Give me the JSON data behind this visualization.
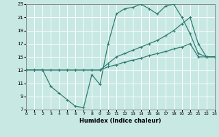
{
  "xlabel": "Humidex (Indice chaleur)",
  "xlim": [
    0,
    23
  ],
  "ylim": [
    7,
    23
  ],
  "xticks": [
    0,
    1,
    2,
    3,
    4,
    5,
    6,
    7,
    8,
    9,
    10,
    11,
    12,
    13,
    14,
    15,
    16,
    17,
    18,
    19,
    20,
    21,
    22,
    23
  ],
  "yticks": [
    7,
    9,
    11,
    13,
    15,
    17,
    19,
    21,
    23
  ],
  "background_color": "#c8e8e4",
  "grid_color": "#ffffff",
  "line_color": "#2e7b72",
  "line1_x": [
    0,
    1,
    2,
    3,
    4,
    5,
    6,
    7,
    8,
    9,
    10,
    11,
    12,
    13,
    14,
    15,
    16,
    17,
    18,
    19,
    20,
    21,
    22,
    23
  ],
  "line1_y": [
    13,
    13,
    13,
    10.5,
    9.5,
    8.5,
    7.5,
    7.3,
    12.3,
    10.8,
    17.0,
    21.5,
    22.3,
    22.5,
    23.0,
    22.3,
    21.5,
    22.7,
    23.0,
    21.0,
    18.5,
    15.5,
    15.0,
    15.0
  ],
  "line2_x": [
    0,
    1,
    2,
    3,
    4,
    5,
    6,
    7,
    8,
    9,
    10,
    11,
    12,
    13,
    14,
    15,
    16,
    17,
    18,
    19,
    20,
    21,
    22,
    23
  ],
  "line2_y": [
    13,
    13,
    13,
    13,
    13,
    13,
    13,
    13,
    13,
    13,
    14.0,
    15.0,
    15.5,
    16.0,
    16.5,
    17.0,
    17.5,
    18.2,
    19.0,
    20.0,
    21.0,
    17.0,
    15.0,
    15.0
  ],
  "line3_x": [
    0,
    1,
    2,
    3,
    4,
    5,
    6,
    7,
    8,
    9,
    10,
    11,
    12,
    13,
    14,
    15,
    16,
    17,
    18,
    19,
    20,
    21,
    22,
    23
  ],
  "line3_y": [
    13,
    13,
    13,
    13,
    13,
    13,
    13,
    13,
    13,
    13,
    13.5,
    13.8,
    14.2,
    14.5,
    14.8,
    15.2,
    15.5,
    15.8,
    16.2,
    16.5,
    17.0,
    15.0,
    15.0,
    15.0
  ]
}
